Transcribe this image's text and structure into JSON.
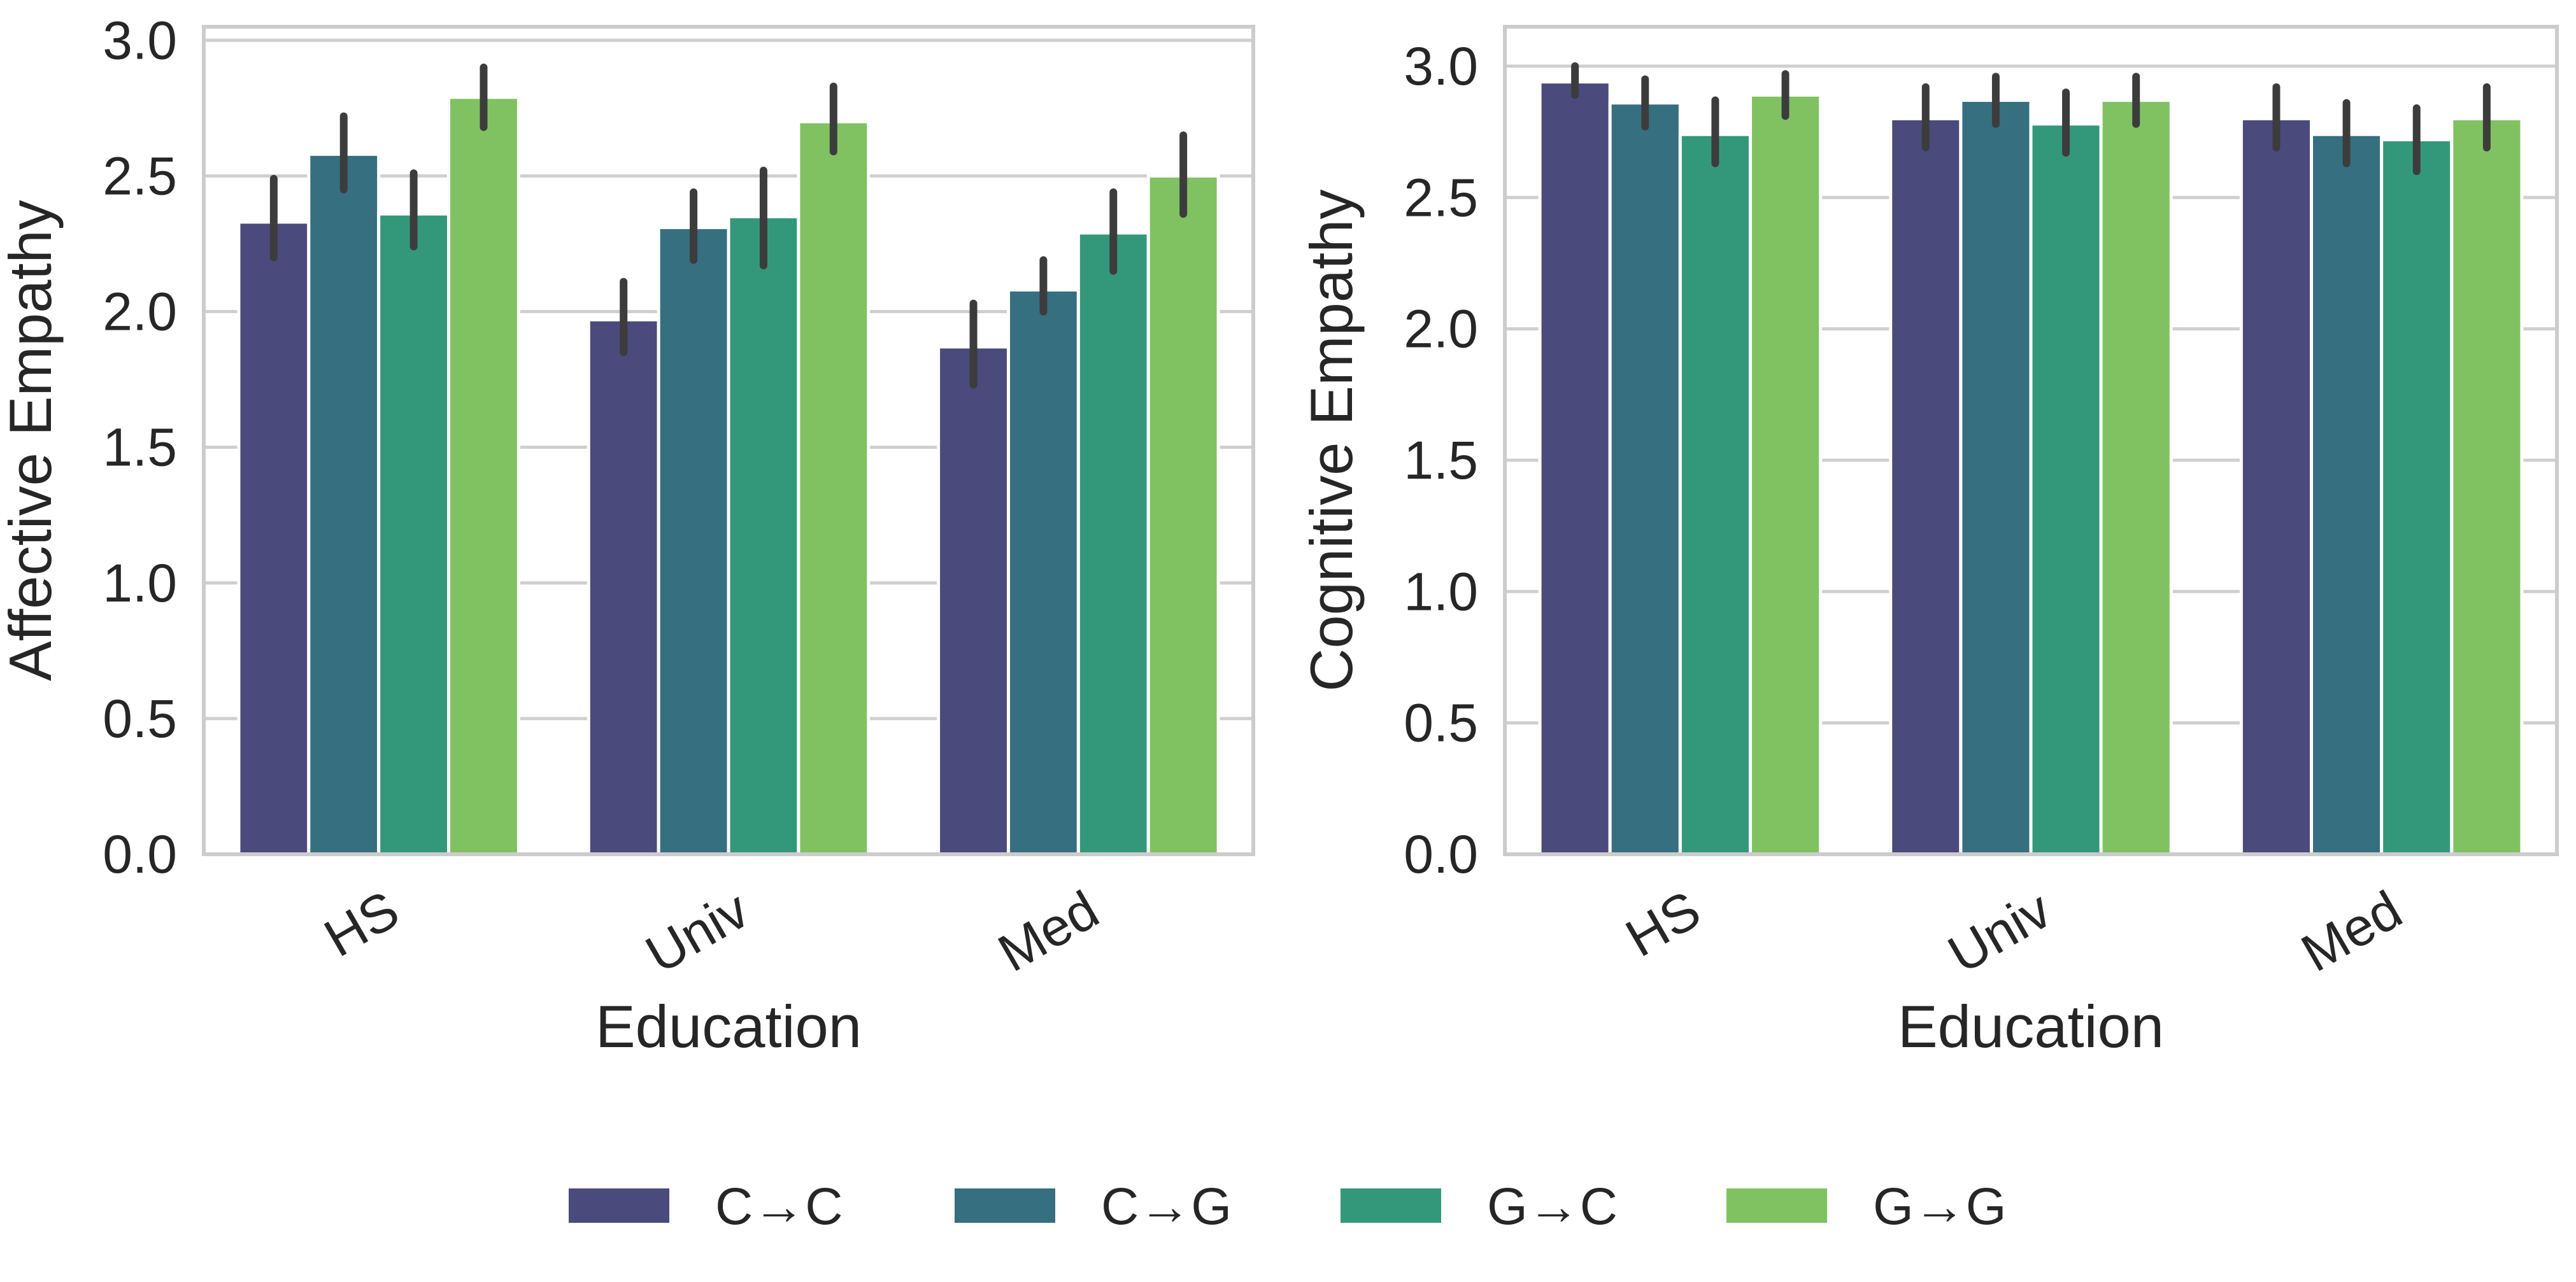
{
  "chart_data": [
    {
      "type": "bar",
      "xlabel": "Education",
      "ylabel": "Affective Empathy",
      "categories": [
        "HS",
        "Univ",
        "Med"
      ],
      "ylim": [
        0,
        3.05
      ],
      "yticks": [
        "0.0",
        "0.5",
        "1.0",
        "1.5",
        "2.0",
        "2.5",
        "3.0"
      ],
      "grid": true,
      "series": [
        {
          "name": "C→C",
          "values": [
            2.33,
            1.97,
            1.87
          ],
          "ci_low": [
            2.2,
            1.85,
            1.73
          ],
          "ci_high": [
            2.49,
            2.11,
            2.03
          ]
        },
        {
          "name": "C→G",
          "values": [
            2.58,
            2.31,
            2.08
          ],
          "ci_low": [
            2.45,
            2.19,
            2.0
          ],
          "ci_high": [
            2.72,
            2.44,
            2.19
          ]
        },
        {
          "name": "G→C",
          "values": [
            2.36,
            2.35,
            2.29
          ],
          "ci_low": [
            2.24,
            2.17,
            2.15
          ],
          "ci_high": [
            2.51,
            2.52,
            2.44
          ]
        },
        {
          "name": "G→G",
          "values": [
            2.79,
            2.7,
            2.5
          ],
          "ci_low": [
            2.68,
            2.59,
            2.36
          ],
          "ci_high": [
            2.9,
            2.83,
            2.65
          ]
        }
      ]
    },
    {
      "type": "bar",
      "xlabel": "Education",
      "ylabel": "Cognitive Empathy",
      "categories": [
        "HS",
        "Univ",
        "Med"
      ],
      "ylim": [
        0,
        3.15
      ],
      "yticks": [
        "0.0",
        "0.5",
        "1.0",
        "1.5",
        "2.0",
        "2.5",
        "3.0"
      ],
      "grid": true,
      "series": [
        {
          "name": "C→C",
          "values": [
            2.94,
            2.8,
            2.8
          ],
          "ci_low": [
            2.89,
            2.69,
            2.69
          ],
          "ci_high": [
            3.0,
            2.92,
            2.92
          ]
        },
        {
          "name": "C→G",
          "values": [
            2.86,
            2.87,
            2.74
          ],
          "ci_low": [
            2.77,
            2.78,
            2.63
          ],
          "ci_high": [
            2.95,
            2.96,
            2.86
          ]
        },
        {
          "name": "G→C",
          "values": [
            2.74,
            2.78,
            2.72
          ],
          "ci_low": [
            2.63,
            2.67,
            2.6
          ],
          "ci_high": [
            2.87,
            2.9,
            2.84
          ]
        },
        {
          "name": "G→G",
          "values": [
            2.89,
            2.87,
            2.8
          ],
          "ci_low": [
            2.81,
            2.78,
            2.69
          ],
          "ci_high": [
            2.97,
            2.96,
            2.92
          ]
        }
      ]
    }
  ],
  "legend": {
    "placement": "bottom-center",
    "items": [
      {
        "label": "C→C",
        "color": "#4a4a7c"
      },
      {
        "label": "C→G",
        "color": "#356f80"
      },
      {
        "label": "G→C",
        "color": "#33987a"
      },
      {
        "label": "G→G",
        "color": "#80c262"
      }
    ]
  },
  "colors": {
    "series": [
      "#4a4a7c",
      "#356f80",
      "#33987a",
      "#80c262"
    ],
    "errorbar": "#3c3c3c",
    "grid": "#cfcfcf",
    "spine": "#cccccc",
    "text": "#262626"
  }
}
